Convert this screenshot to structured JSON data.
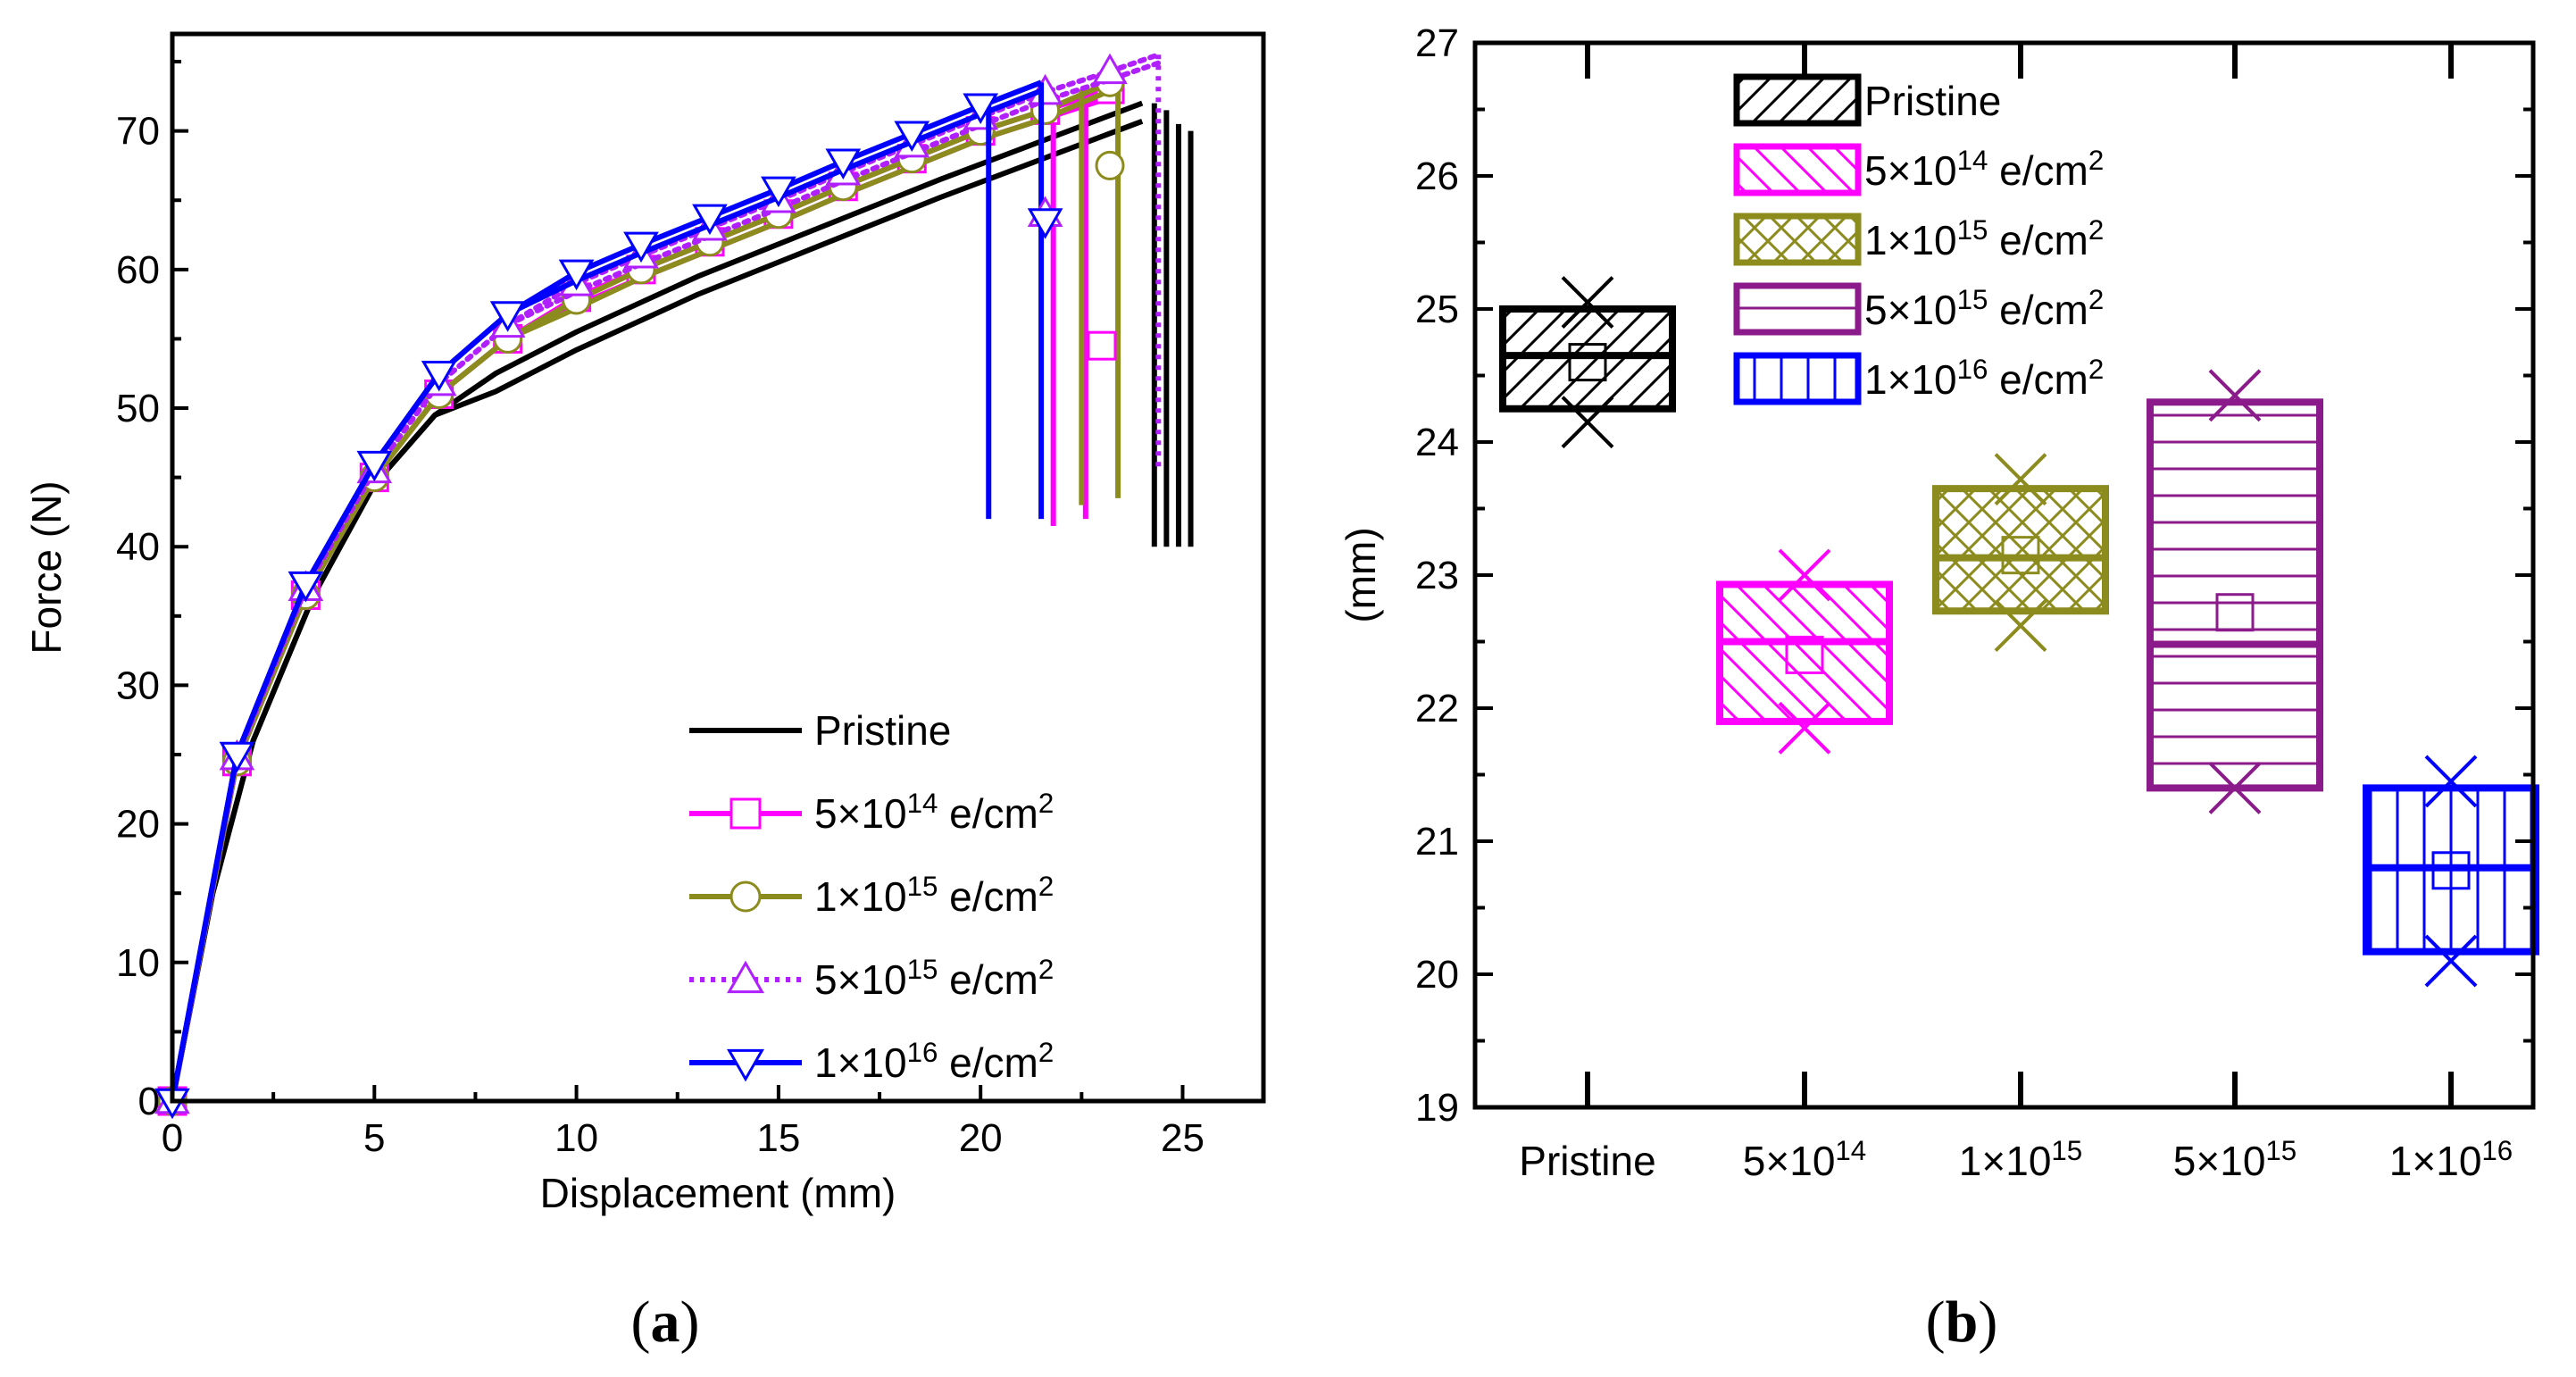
{
  "chart_data": [
    {
      "type": "line",
      "panel_label": "a",
      "xlabel": "Displacement (mm)",
      "ylabel": "Force (N)",
      "xlim": [
        0,
        27
      ],
      "ylim": [
        0,
        77
      ],
      "xticks": [
        0,
        5,
        10,
        15,
        20,
        25
      ],
      "yticks": [
        0,
        10,
        20,
        30,
        40,
        50,
        60,
        70
      ],
      "legend_position": "bottom-right",
      "series": [
        {
          "name": "Pristine",
          "color": "#000000",
          "marker": "none",
          "dash": "solid",
          "x": [
            0,
            1,
            2,
            3.5,
            5,
            6.5,
            8,
            10,
            13,
            16,
            19,
            22,
            24
          ],
          "y": [
            0,
            15,
            26,
            36.5,
            44.5,
            49.5,
            52.5,
            55.5,
            59.5,
            63,
            66.5,
            69.8,
            72
          ],
          "fracture_x": [
            24.3,
            24.6,
            24.9,
            25.2
          ],
          "fracture_peak_y": [
            72,
            71.5,
            70.5,
            70
          ],
          "fracture_min_y": [
            40,
            40,
            40,
            40
          ]
        },
        {
          "name": "5×10¹⁴ e/cm²",
          "color": "#ff00ff",
          "marker": "square",
          "dash": "solid",
          "x": [
            0,
            1.6,
            3.3,
            5,
            6.6,
            8.3,
            10,
            11.6,
            13.3,
            15,
            16.6,
            18.3,
            20,
            21.6,
            23.2
          ],
          "y": [
            0,
            24.5,
            36.5,
            45,
            51,
            55,
            58,
            60,
            62,
            64,
            66,
            68,
            70,
            71.5,
            73
          ],
          "markers_x": [
            0,
            1.6,
            3.3,
            5,
            6.6,
            8.3,
            10,
            11.6,
            13.3,
            15,
            16.6,
            18.3,
            20,
            21.6,
            23.2
          ],
          "fracture_x": [
            21.8,
            22.6
          ],
          "fracture_peak_y": [
            72,
            73
          ],
          "fracture_min_y": [
            41.5,
            42
          ]
        },
        {
          "name": "1×10¹⁵ e/cm²",
          "color": "#8c8c1e",
          "marker": "circle",
          "dash": "solid",
          "x": [
            0,
            1.6,
            3.3,
            5,
            6.6,
            8.3,
            10,
            11.6,
            13.3,
            15,
            16.6,
            18.3,
            20,
            21.6,
            23.2
          ],
          "y": [
            0,
            24.5,
            36.5,
            45,
            51,
            55,
            57.8,
            60,
            62,
            64,
            66,
            68,
            70,
            71.5,
            73.5
          ],
          "markers_x": [
            0,
            1.6,
            3.3,
            5,
            6.6,
            8.3,
            10,
            11.6,
            13.3,
            15,
            16.6,
            18.3,
            20,
            21.6,
            23.2
          ],
          "fracture_x": [
            22.5,
            23.4
          ],
          "fracture_peak_y": [
            73,
            74
          ],
          "fracture_min_y": [
            43,
            43.5
          ]
        },
        {
          "name": "5×10¹⁵ e/cm²",
          "color": "#b020ff",
          "marker": "triangle-up",
          "dash": "dotted",
          "x": [
            0,
            1.6,
            3.3,
            5,
            6.6,
            8.3,
            10,
            11.6,
            13.3,
            15,
            16.6,
            18.3,
            20,
            21.6,
            23.2,
            24.4
          ],
          "y": [
            0,
            24.8,
            37,
            45.5,
            51.8,
            56,
            59,
            61,
            63,
            65,
            67,
            69,
            71,
            72.8,
            74.3,
            75.5
          ],
          "markers_x": [
            0,
            1.6,
            3.3,
            5,
            6.6,
            8.3,
            10,
            11.6,
            13.3,
            15,
            16.6,
            18.3,
            20,
            21.6,
            23.2
          ],
          "fracture_x": [
            24.4
          ],
          "fracture_peak_y": [
            75.5
          ],
          "fracture_min_y": [
            45.5
          ]
        },
        {
          "name": "1×10¹⁶ e/cm²",
          "color": "#0000ff",
          "marker": "triangle-down",
          "dash": "solid",
          "x": [
            0,
            1.6,
            3.3,
            5,
            6.6,
            8.3,
            10,
            11.6,
            13.3,
            15,
            16.6,
            18.3,
            20,
            21.5
          ],
          "y": [
            0,
            25,
            37.3,
            46,
            52.5,
            56.8,
            59.8,
            61.8,
            63.8,
            65.8,
            67.8,
            69.8,
            71.8,
            73.5
          ],
          "markers_x": [
            0,
            1.6,
            3.3,
            5,
            6.6,
            8.3,
            10,
            11.6,
            13.3,
            15,
            16.6,
            18.3,
            20
          ],
          "fracture_x": [
            20.2,
            21.5
          ],
          "fracture_peak_y": [
            72,
            73.5
          ],
          "fracture_min_y": [
            42,
            42
          ]
        }
      ],
      "extra_markers": [
        {
          "series": 1,
          "x": 23.0,
          "y": 54.5
        },
        {
          "series": 2,
          "x": 23.2,
          "y": 67.5
        },
        {
          "series": 3,
          "x": 21.6,
          "y": 64
        },
        {
          "series": 4,
          "x": 21.6,
          "y": 63.5
        }
      ]
    },
    {
      "type": "box",
      "panel_label": "b",
      "xlabel": "",
      "ylabel": "(mm)",
      "ylim": [
        19,
        27
      ],
      "yticks": [
        19,
        20,
        21,
        22,
        23,
        24,
        25,
        26,
        27
      ],
      "categories": [
        "Pristine",
        "5×10¹⁴",
        "1×10¹⁵",
        "5×10¹⁵",
        "1×10¹⁶"
      ],
      "legend_position": "top-center",
      "boxes": [
        {
          "name": "Pristine",
          "legend": "Pristine",
          "color": "#000000",
          "pattern": "diag-up",
          "q1": 24.25,
          "q3": 25.0,
          "median": 24.65,
          "mean": 24.6,
          "min": 24.15,
          "max": 25.05
        },
        {
          "name": "5×10¹⁴",
          "legend": "5×10¹⁴ e/cm²",
          "color": "#ff00ff",
          "pattern": "diag-down",
          "q1": 21.9,
          "q3": 22.93,
          "median": 22.5,
          "mean": 22.4,
          "min": 21.85,
          "max": 23.0
        },
        {
          "name": "1×10¹⁵",
          "legend": "1×10¹⁵ e/cm²",
          "color": "#8c8c1e",
          "pattern": "cross",
          "q1": 22.73,
          "q3": 23.65,
          "median": 23.13,
          "mean": 23.15,
          "min": 22.62,
          "max": 23.72
        },
        {
          "name": "5×10¹⁵",
          "legend": "5×10¹⁵ e/cm²",
          "color": "#8b1a8b",
          "pattern": "horizontal",
          "q1": 21.4,
          "q3": 24.3,
          "median": 22.48,
          "mean": 22.72,
          "min": 21.4,
          "max": 24.35
        },
        {
          "name": "1×10¹⁶",
          "legend": "1×10¹⁶ e/cm²",
          "color": "#0000ff",
          "pattern": "vertical",
          "q1": 20.17,
          "q3": 21.4,
          "median": 20.8,
          "mean": 20.78,
          "min": 20.1,
          "max": 21.45
        }
      ]
    }
  ],
  "captions": {
    "a": "a",
    "b": "b"
  }
}
